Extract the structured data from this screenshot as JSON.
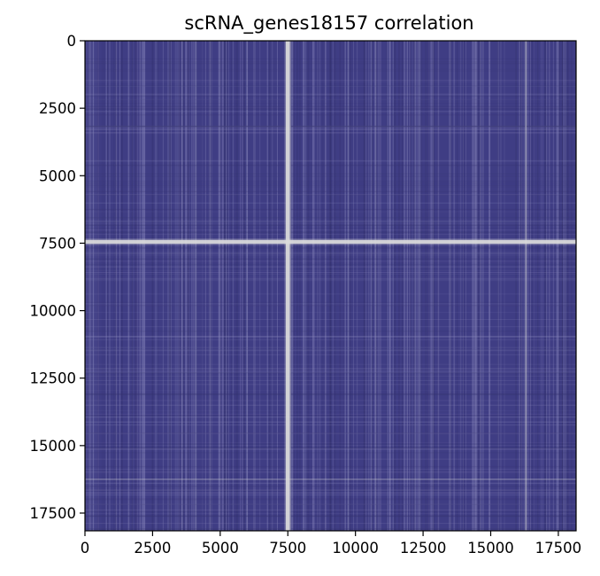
{
  "chart_data": {
    "type": "heatmap",
    "title": "scRNA_genes18157 correlation",
    "xlabel": "",
    "ylabel": "",
    "n": 18157,
    "xlim": [
      0,
      18157
    ],
    "ylim": [
      18157,
      0
    ],
    "x_ticks": [
      {
        "value": 0,
        "label": "0"
      },
      {
        "value": 2500,
        "label": "2500"
      },
      {
        "value": 5000,
        "label": "5000"
      },
      {
        "value": 7500,
        "label": "7500"
      },
      {
        "value": 10000,
        "label": "10000"
      },
      {
        "value": 12500,
        "label": "12500"
      },
      {
        "value": 15000,
        "label": "15000"
      },
      {
        "value": 17500,
        "label": "17500"
      }
    ],
    "y_ticks": [
      {
        "value": 0,
        "label": "0"
      },
      {
        "value": 2500,
        "label": "2500"
      },
      {
        "value": 5000,
        "label": "5000"
      },
      {
        "value": 7500,
        "label": "7500"
      },
      {
        "value": 10000,
        "label": "10000"
      },
      {
        "value": 12500,
        "label": "12500"
      },
      {
        "value": 15000,
        "label": "15000"
      },
      {
        "value": 17500,
        "label": "17500"
      }
    ],
    "colors": {
      "background": "#3f3d84",
      "highlight": "#dcdcdc",
      "stripe_light": "#8e8cbe",
      "stripe_dark": "#34326f"
    },
    "bright_bands": [
      {
        "orientation": "vertical",
        "value": 7500
      },
      {
        "orientation": "horizontal",
        "value": 7450
      },
      {
        "orientation": "vertical",
        "value": 16300
      },
      {
        "orientation": "horizontal",
        "value": 16250
      }
    ],
    "grid": false,
    "legend": "none"
  }
}
